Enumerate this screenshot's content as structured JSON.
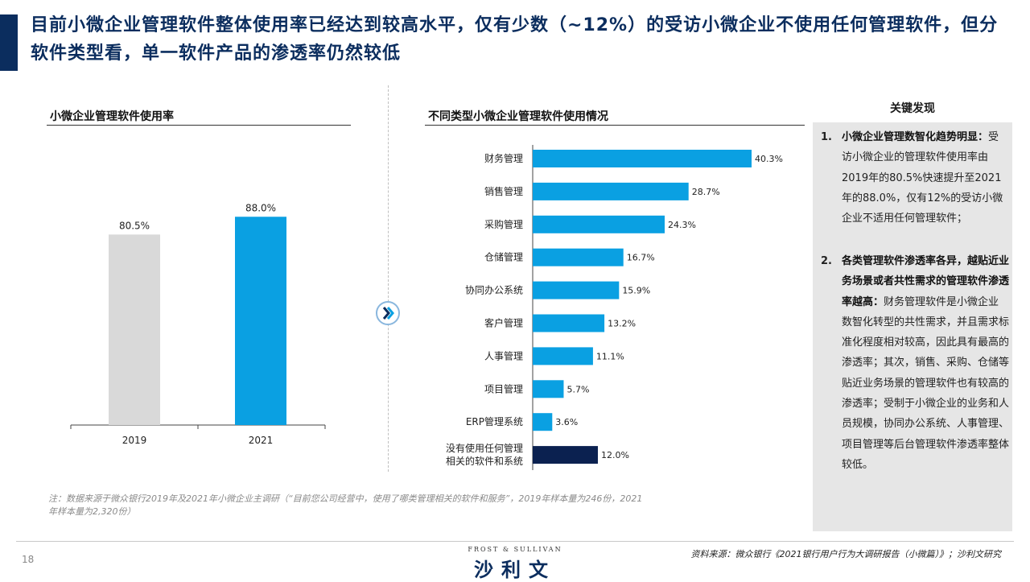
{
  "header": {
    "title": "目前小微企业管理软件整体使用率已经达到较高水平，仅有少数（~12%）的受访小微企业不使用任何管理软件，但分软件类型看，单一软件产品的渗透率仍然较低"
  },
  "left_panel": {
    "title": "小微企业管理软件使用率"
  },
  "right_panel": {
    "title": "不同类型小微企业管理软件使用情况"
  },
  "colors": {
    "navy": "#0b2d5e",
    "blue": "#0aa0e2",
    "gray_bar": "#d9d9d9",
    "dark_bar": "#0b2150"
  },
  "chart_data": [
    {
      "type": "bar",
      "title": "小微企业管理软件使用率",
      "categories": [
        "2019",
        "2021"
      ],
      "values": [
        80.5,
        88.0
      ],
      "labels": [
        "80.5%",
        "88.0%"
      ],
      "ylim": [
        0,
        100
      ],
      "bar_colors": [
        "#d9d9d9",
        "#0aa0e2"
      ]
    },
    {
      "type": "bar",
      "orientation": "horizontal",
      "title": "不同类型小微企业管理软件使用情况",
      "categories": [
        "财务管理",
        "销售管理",
        "采购管理",
        "仓储管理",
        "协同办公系统",
        "客户管理",
        "人事管理",
        "项目管理",
        "ERP管理系统",
        "没有使用任何管理\n相关的软件和系统"
      ],
      "values": [
        40.3,
        28.7,
        24.3,
        16.7,
        15.9,
        13.2,
        11.1,
        5.7,
        3.6,
        12.0
      ],
      "labels": [
        "40.3%",
        "28.7%",
        "24.3%",
        "16.7%",
        "15.9%",
        "13.2%",
        "11.1%",
        "5.7%",
        "3.6%",
        "12.0%"
      ],
      "xlim": [
        0,
        40.3
      ],
      "bar_colors": [
        "#0aa0e2",
        "#0aa0e2",
        "#0aa0e2",
        "#0aa0e2",
        "#0aa0e2",
        "#0aa0e2",
        "#0aa0e2",
        "#0aa0e2",
        "#0aa0e2",
        "#0b2150"
      ]
    }
  ],
  "findings": {
    "title": "关键发现",
    "items": [
      {
        "num": "1.",
        "bold": "小微企业管理数智化趋势明显：",
        "text": "受访小微企业的管理软件使用率由2019年的80.5%快速提升至2021年的88.0%，仅有12%的受访小微企业不适用任何管理软件；"
      },
      {
        "num": "2.",
        "bold": "各类管理软件渗透率各异，越贴近业务场景或者共性需求的管理软件渗透率越高：",
        "text": "财务管理软件是小微企业数智化转型的共性需求，并且需求标准化程度相对较高，因此具有最高的渗透率；其次，销售、采购、仓储等贴近业务场景的管理软件也有较高的渗透率；受制于小微企业的业务和人员规模，协同办公系统、人事管理、项目管理等后台管理软件渗透率整体较低。"
      }
    ]
  },
  "footer": {
    "note": "注：数据来源于微众银行2019年及2021年小微企业主调研（“目前您公司经营中，使用了哪类管理相关的软件和服务”，2019年样本量为246份，2021年样本量为2,320份）",
    "page_number": "18",
    "logo_top": "FROST & SULLIVAN",
    "logo_main": "沙利文",
    "source": "资料来源：微众银行《2021银行用户行为大调研报告（小微篇）》；沙利文研究"
  }
}
